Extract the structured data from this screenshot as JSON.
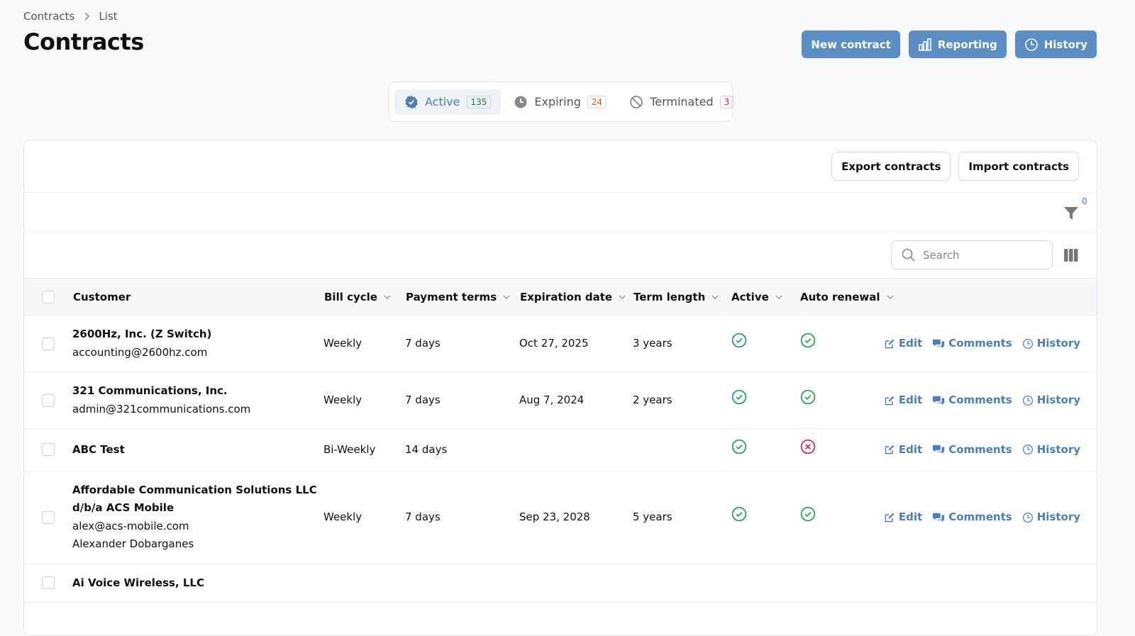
{
  "breadcrumb": [
    "Contracts",
    "List"
  ],
  "header": {
    "title": "Contracts",
    "actions": [
      "New contract",
      "Reporting",
      "History"
    ]
  },
  "tabs": [
    {
      "label": "Active",
      "count": 135
    },
    {
      "label": "Expiring",
      "count": 24
    },
    {
      "label": "Terminated",
      "count": 3
    }
  ],
  "toolbar": {
    "actions": [
      "Export contracts",
      "Import contracts"
    ],
    "filter_count": 0,
    "search_placeholder": "Search"
  },
  "table": {
    "columns": [
      "Customer",
      "Bill cycle",
      "Payment terms",
      "Expiration date",
      "Term length",
      "Active",
      "Auto renewal"
    ],
    "row_actions": [
      "Edit",
      "Comments",
      "History"
    ],
    "rows": [
      {
        "name": "2600Hz, Inc. (Z Switch)",
        "details": [
          "accounting@2600hz.com"
        ],
        "bill_cycle": "Weekly",
        "payment_terms": "7 days",
        "expiration_date": "Oct 27, 2025",
        "term_length": "3 years",
        "active": true,
        "auto_renewal": true
      },
      {
        "name": "321 Communications, Inc.",
        "details": [
          "admin@321communications.com"
        ],
        "bill_cycle": "Weekly",
        "payment_terms": "7 days",
        "expiration_date": "Aug 7, 2024",
        "term_length": "2 years",
        "active": true,
        "auto_renewal": true
      },
      {
        "name": "ABC Test",
        "details": [],
        "bill_cycle": "Bi-Weekly",
        "payment_terms": "14 days",
        "expiration_date": null,
        "term_length": null,
        "active": true,
        "auto_renewal": false
      },
      {
        "name": "Affordable Communication Solutions LLC d/b/a ACS Mobile",
        "details": [
          "alex@acs-mobile.com",
          "Alexander Dobarganes"
        ],
        "bill_cycle": "Weekly",
        "payment_terms": "7 days",
        "expiration_date": "Sep 23, 2028",
        "term_length": "5 years",
        "active": true,
        "auto_renewal": true
      },
      {
        "name": "Ai Voice Wireless, LLC",
        "details": [],
        "bill_cycle": null,
        "payment_terms": null,
        "expiration_date": null,
        "term_length": null,
        "active": null,
        "auto_renewal": null
      }
    ]
  }
}
